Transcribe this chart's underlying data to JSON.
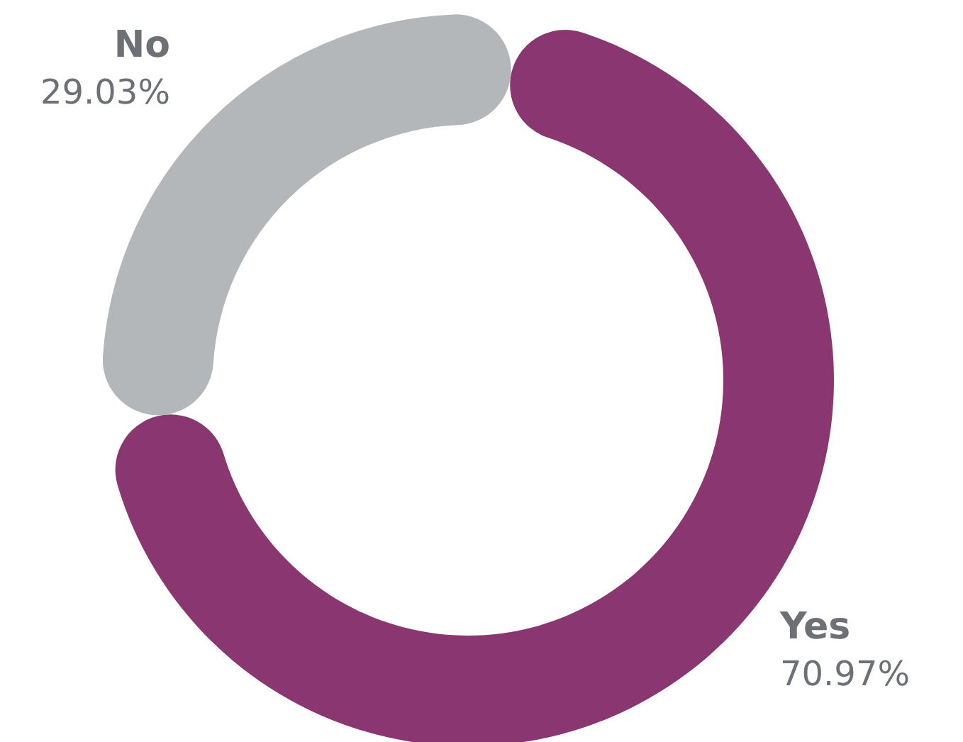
{
  "chart_data": {
    "type": "donut",
    "categories": [
      "Yes",
      "No"
    ],
    "values": [
      70.97,
      29.03
    ],
    "value_labels": [
      "70.97%",
      "29.03%"
    ],
    "colors": [
      "#8a3670",
      "#b4b7ba"
    ],
    "legend": false
  }
}
